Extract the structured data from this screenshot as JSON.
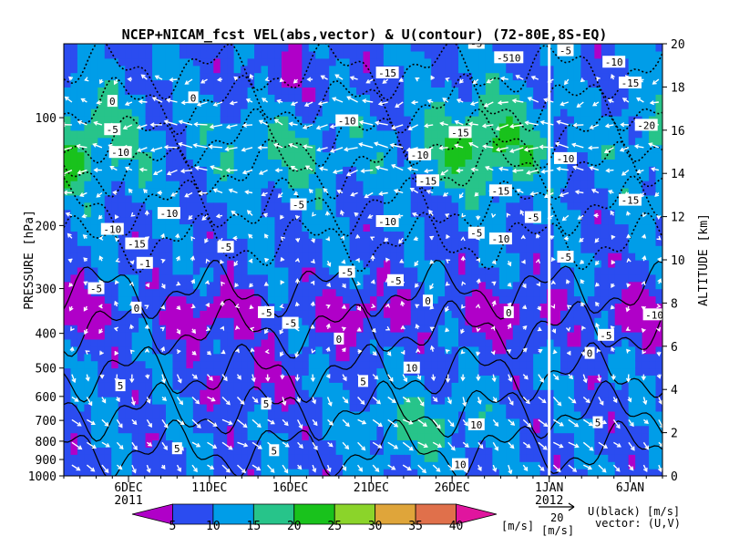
{
  "chart_data": {
    "type": "heatmap",
    "title": "NCEP+NICAM_fcst VEL(abs,vector) & U(contour)  (72-80E,8S-EQ)",
    "ylabel_left": "PRESSURE [hPa]",
    "ylabel_right": "ALTITUDE [km]",
    "pressure_ticks": [
      100,
      200,
      300,
      400,
      500,
      600,
      700,
      800,
      900,
      1000
    ],
    "altitude_ticks": [
      0,
      2,
      4,
      6,
      8,
      10,
      12,
      14,
      16,
      18,
      20
    ],
    "x_ticks": [
      {
        "label": "6DEC",
        "day": 6
      },
      {
        "label": "11DEC",
        "day": 11
      },
      {
        "label": "16DEC",
        "day": 16
      },
      {
        "label": "21DEC",
        "day": 21
      },
      {
        "label": "26DEC",
        "day": 26
      },
      {
        "label": "1JAN",
        "day": 32
      },
      {
        "label": "6JAN",
        "day": 37
      }
    ],
    "x_range_days": [
      2,
      39
    ],
    "year_labels": [
      {
        "label": "2011",
        "day": 6
      },
      {
        "label": "2012",
        "day": 32
      }
    ],
    "forecast_start_day": 32,
    "colorbar": {
      "levels": [
        5,
        10,
        15,
        20,
        25,
        30,
        35,
        40
      ],
      "colors": [
        "#b000c8",
        "#2b4cf0",
        "#009de8",
        "#27c48a",
        "#19c21c",
        "#8bd42a",
        "#dfa53a",
        "#e0704b",
        "#e0159e"
      ],
      "units": "[m/s]"
    },
    "vector_ref": {
      "value": "20",
      "units": "[m/s]"
    },
    "legend_text": {
      "line1": "U(black) [m/s]",
      "line2": "vector: (U,V)"
    },
    "contour_labels": [
      {
        "t": "0",
        "day": 17.5,
        "p": 15
      },
      {
        "t": "-5",
        "day": 23.5,
        "p": 60
      },
      {
        "t": "-5",
        "day": 27.5,
        "p": 62
      },
      {
        "t": "-5",
        "day": 33,
        "p": 65
      },
      {
        "t": "-510",
        "day": 29.5,
        "p": 68
      },
      {
        "t": "-10",
        "day": 36,
        "p": 70
      },
      {
        "t": "-15",
        "day": 37,
        "p": 80
      },
      {
        "t": "-15",
        "day": 22,
        "p": 75
      },
      {
        "t": "0",
        "day": 5,
        "p": 90
      },
      {
        "t": "0",
        "day": 10,
        "p": 88
      },
      {
        "t": "-5",
        "day": 5,
        "p": 108
      },
      {
        "t": "-10",
        "day": 19.5,
        "p": 102
      },
      {
        "t": "-15",
        "day": 26.5,
        "p": 110
      },
      {
        "t": "-20",
        "day": 38,
        "p": 105
      },
      {
        "t": "-10",
        "day": 5.5,
        "p": 125
      },
      {
        "t": "-10",
        "day": 24,
        "p": 127
      },
      {
        "t": "-10",
        "day": 33,
        "p": 130
      },
      {
        "t": "-15",
        "day": 24.5,
        "p": 150
      },
      {
        "t": "-15",
        "day": 29,
        "p": 160
      },
      {
        "t": "-15",
        "day": 37,
        "p": 170
      },
      {
        "t": "-5",
        "day": 16.5,
        "p": 175
      },
      {
        "t": "-10",
        "day": 8.5,
        "p": 185
      },
      {
        "t": "-10",
        "day": 22,
        "p": 195
      },
      {
        "t": "-5",
        "day": 31,
        "p": 190
      },
      {
        "t": "-10",
        "day": 5,
        "p": 205
      },
      {
        "t": "-5",
        "day": 27.5,
        "p": 210
      },
      {
        "t": "-10",
        "day": 29,
        "p": 218
      },
      {
        "t": "-15",
        "day": 6.5,
        "p": 225
      },
      {
        "t": "-5",
        "day": 12,
        "p": 230
      },
      {
        "t": "-5",
        "day": 33,
        "p": 245
      },
      {
        "t": "-1",
        "day": 7,
        "p": 255
      },
      {
        "t": "-5",
        "day": 19.5,
        "p": 270
      },
      {
        "t": "-5",
        "day": 22.5,
        "p": 285
      },
      {
        "t": "-5",
        "day": 4,
        "p": 300
      },
      {
        "t": "0",
        "day": 24.5,
        "p": 325
      },
      {
        "t": "0",
        "day": 6.5,
        "p": 340
      },
      {
        "t": "0",
        "day": 29.5,
        "p": 350
      },
      {
        "t": "-5",
        "day": 14.5,
        "p": 350
      },
      {
        "t": "-5",
        "day": 16,
        "p": 375
      },
      {
        "t": "-10",
        "day": 38.5,
        "p": 355
      },
      {
        "t": "-5",
        "day": 35.5,
        "p": 405
      },
      {
        "t": "0",
        "day": 19,
        "p": 415
      },
      {
        "t": "0",
        "day": 34.5,
        "p": 455
      },
      {
        "t": "5",
        "day": 5.5,
        "p": 560
      },
      {
        "t": "5",
        "day": 20.5,
        "p": 545
      },
      {
        "t": "10",
        "day": 23.5,
        "p": 500
      },
      {
        "t": "5",
        "day": 14.5,
        "p": 630
      },
      {
        "t": "5",
        "day": 35,
        "p": 710
      },
      {
        "t": "10",
        "day": 27.5,
        "p": 720
      },
      {
        "t": "5",
        "day": 9,
        "p": 840
      },
      {
        "t": "5",
        "day": 15,
        "p": 850
      },
      {
        "t": "10",
        "day": 26.5,
        "p": 930
      }
    ]
  }
}
